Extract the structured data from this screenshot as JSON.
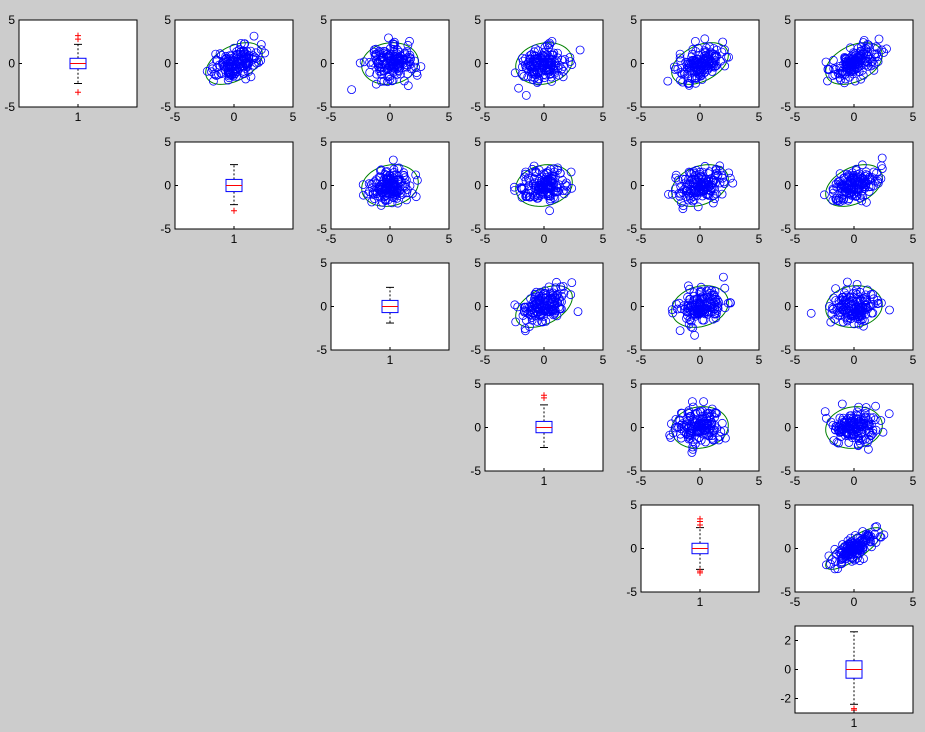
{
  "colors": {
    "background": "#cccccc",
    "axes_face": "#ffffff",
    "marker": "#0000ff",
    "ellipse": "#008000",
    "box": "#0000ff",
    "median": "#ff0000",
    "outlier": "#ff0000",
    "whisker": "#000000"
  },
  "chart_data": {
    "type": "scatter-matrix",
    "grid": false,
    "legend": "none",
    "variables": 6,
    "scatter_xlim": [
      -5,
      5
    ],
    "scatter_ylim": [
      -5,
      5
    ],
    "tick_labels": [
      "-5",
      "0",
      "5"
    ],
    "box_category_label": "1",
    "diagonal_boxplots": [
      {
        "row": 1,
        "ylim": [
          -5,
          5
        ],
        "yticks": [
          "-5",
          "0",
          "5"
        ],
        "q1": -0.6,
        "median": 0.0,
        "q3": 0.6,
        "whisker_low": -2.3,
        "whisker_high": 2.2,
        "outliers": [
          2.8,
          3.2,
          -3.3
        ]
      },
      {
        "row": 2,
        "ylim": [
          -5,
          5
        ],
        "yticks": [
          "-5",
          "0",
          "5"
        ],
        "q1": -0.7,
        "median": 0.0,
        "q3": 0.7,
        "whisker_low": -2.2,
        "whisker_high": 2.4,
        "outliers": [
          -2.9
        ]
      },
      {
        "row": 3,
        "ylim": [
          -5,
          5
        ],
        "yticks": [
          "-5",
          "0",
          "5"
        ],
        "q1": -0.7,
        "median": 0.0,
        "q3": 0.7,
        "whisker_low": -1.9,
        "whisker_high": 2.2,
        "outliers": []
      },
      {
        "row": 4,
        "ylim": [
          -5,
          5
        ],
        "yticks": [
          "-5",
          "0",
          "5"
        ],
        "q1": -0.6,
        "median": 0.0,
        "q3": 0.7,
        "whisker_low": -2.3,
        "whisker_high": 2.6,
        "outliers": [
          3.4,
          3.7
        ]
      },
      {
        "row": 5,
        "ylim": [
          -5,
          5
        ],
        "yticks": [
          "-5",
          "0",
          "5"
        ],
        "q1": -0.6,
        "median": 0.0,
        "q3": 0.6,
        "whisker_low": -2.4,
        "whisker_high": 2.4,
        "outliers": [
          2.7,
          3.1,
          3.4,
          -2.6,
          -2.8
        ]
      },
      {
        "row": 6,
        "ylim": [
          -3,
          3
        ],
        "yticks": [
          "-2",
          "0",
          "2"
        ],
        "q1": -0.6,
        "median": 0.0,
        "q3": 0.6,
        "whisker_low": -2.4,
        "whisker_high": 2.6,
        "outliers": [
          -2.7,
          -2.8
        ]
      }
    ],
    "scatter_panels": [
      {
        "row": 1,
        "col": 2,
        "correlation": 0.45
      },
      {
        "row": 1,
        "col": 3,
        "correlation": 0.1
      },
      {
        "row": 1,
        "col": 4,
        "correlation": 0.15
      },
      {
        "row": 1,
        "col": 5,
        "correlation": 0.4
      },
      {
        "row": 1,
        "col": 6,
        "correlation": 0.4
      },
      {
        "row": 2,
        "col": 3,
        "correlation": 0.15
      },
      {
        "row": 2,
        "col": 4,
        "correlation": 0.15
      },
      {
        "row": 2,
        "col": 5,
        "correlation": 0.3
      },
      {
        "row": 2,
        "col": 6,
        "correlation": 0.4
      },
      {
        "row": 3,
        "col": 4,
        "correlation": 0.45
      },
      {
        "row": 3,
        "col": 5,
        "correlation": 0.2
      },
      {
        "row": 3,
        "col": 6,
        "correlation": 0.1
      },
      {
        "row": 4,
        "col": 5,
        "correlation": 0.1
      },
      {
        "row": 4,
        "col": 6,
        "correlation": 0.1
      },
      {
        "row": 5,
        "col": 6,
        "correlation": 0.8
      }
    ],
    "points_per_panel": 150
  }
}
